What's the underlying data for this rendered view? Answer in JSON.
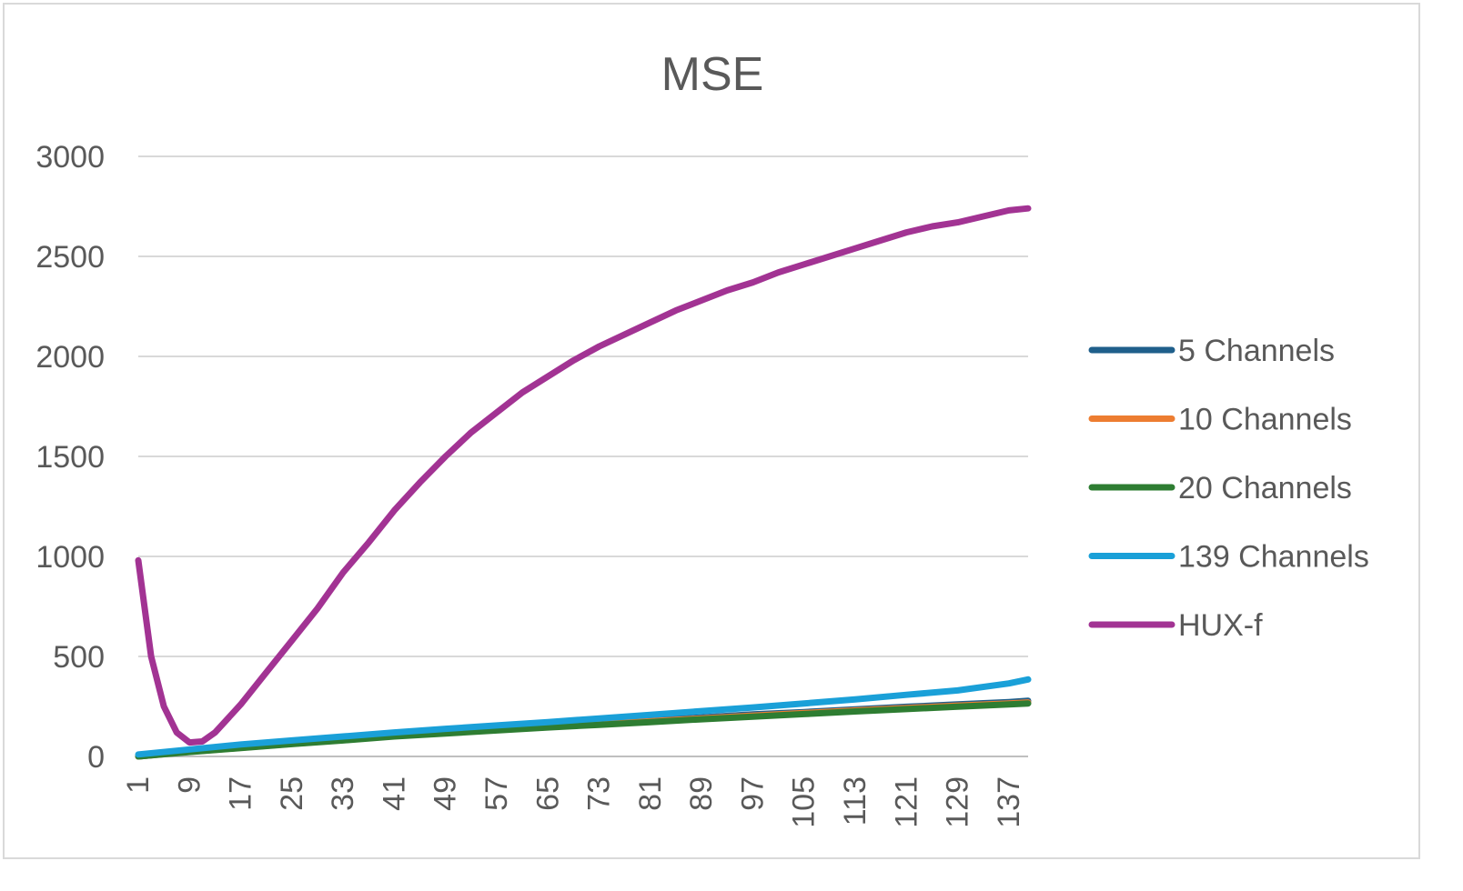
{
  "chart_data": {
    "type": "line",
    "title": "MSE",
    "xlabel": "",
    "ylabel": "",
    "x_range": [
      1,
      140
    ],
    "ylim": [
      0,
      3000
    ],
    "y_ticks": [
      0,
      500,
      1000,
      1500,
      2000,
      2500,
      3000
    ],
    "x_tick_labels": [
      1,
      9,
      17,
      25,
      33,
      41,
      49,
      57,
      65,
      73,
      81,
      89,
      97,
      105,
      113,
      121,
      129,
      137
    ],
    "grid": true,
    "legend_position": "right",
    "series": [
      {
        "name": "5 Channels",
        "color": "#1f5f8b",
        "points": [
          [
            1,
            0
          ],
          [
            9,
            25
          ],
          [
            17,
            45
          ],
          [
            25,
            65
          ],
          [
            33,
            85
          ],
          [
            41,
            105
          ],
          [
            49,
            120
          ],
          [
            57,
            135
          ],
          [
            65,
            150
          ],
          [
            73,
            165
          ],
          [
            81,
            180
          ],
          [
            89,
            195
          ],
          [
            97,
            210
          ],
          [
            105,
            222
          ],
          [
            113,
            235
          ],
          [
            121,
            248
          ],
          [
            129,
            260
          ],
          [
            137,
            272
          ],
          [
            140,
            278
          ]
        ]
      },
      {
        "name": "10 Channels",
        "color": "#ed7d31",
        "points": [
          [
            1,
            0
          ],
          [
            9,
            23
          ],
          [
            17,
            43
          ],
          [
            25,
            63
          ],
          [
            33,
            82
          ],
          [
            41,
            102
          ],
          [
            49,
            117
          ],
          [
            57,
            132
          ],
          [
            65,
            147
          ],
          [
            73,
            161
          ],
          [
            81,
            176
          ],
          [
            89,
            190
          ],
          [
            97,
            204
          ],
          [
            105,
            217
          ],
          [
            113,
            230
          ],
          [
            121,
            242
          ],
          [
            129,
            254
          ],
          [
            137,
            265
          ],
          [
            140,
            270
          ]
        ]
      },
      {
        "name": "20 Channels",
        "color": "#2e7d32",
        "points": [
          [
            1,
            0
          ],
          [
            9,
            22
          ],
          [
            17,
            42
          ],
          [
            25,
            62
          ],
          [
            33,
            80
          ],
          [
            41,
            100
          ],
          [
            49,
            115
          ],
          [
            57,
            130
          ],
          [
            65,
            145
          ],
          [
            73,
            158
          ],
          [
            81,
            172
          ],
          [
            89,
            186
          ],
          [
            97,
            199
          ],
          [
            105,
            212
          ],
          [
            113,
            225
          ],
          [
            121,
            237
          ],
          [
            129,
            249
          ],
          [
            137,
            260
          ],
          [
            140,
            265
          ]
        ]
      },
      {
        "name": "139 Channels",
        "color": "#1aa0d8",
        "points": [
          [
            1,
            10
          ],
          [
            9,
            35
          ],
          [
            17,
            60
          ],
          [
            25,
            80
          ],
          [
            33,
            100
          ],
          [
            41,
            120
          ],
          [
            49,
            138
          ],
          [
            57,
            155
          ],
          [
            65,
            172
          ],
          [
            73,
            190
          ],
          [
            81,
            208
          ],
          [
            89,
            227
          ],
          [
            97,
            245
          ],
          [
            105,
            265
          ],
          [
            113,
            285
          ],
          [
            121,
            308
          ],
          [
            129,
            330
          ],
          [
            137,
            365
          ],
          [
            140,
            385
          ]
        ]
      },
      {
        "name": "HUX-f",
        "color": "#a23393",
        "points": [
          [
            1,
            980
          ],
          [
            3,
            500
          ],
          [
            5,
            250
          ],
          [
            7,
            120
          ],
          [
            9,
            70
          ],
          [
            11,
            75
          ],
          [
            13,
            120
          ],
          [
            15,
            190
          ],
          [
            17,
            260
          ],
          [
            21,
            420
          ],
          [
            25,
            580
          ],
          [
            29,
            740
          ],
          [
            33,
            920
          ],
          [
            37,
            1070
          ],
          [
            41,
            1230
          ],
          [
            45,
            1370
          ],
          [
            49,
            1500
          ],
          [
            53,
            1620
          ],
          [
            57,
            1720
          ],
          [
            61,
            1820
          ],
          [
            65,
            1900
          ],
          [
            69,
            1980
          ],
          [
            73,
            2050
          ],
          [
            77,
            2110
          ],
          [
            81,
            2170
          ],
          [
            85,
            2230
          ],
          [
            89,
            2280
          ],
          [
            93,
            2330
          ],
          [
            97,
            2370
          ],
          [
            101,
            2420
          ],
          [
            105,
            2460
          ],
          [
            109,
            2500
          ],
          [
            113,
            2540
          ],
          [
            117,
            2580
          ],
          [
            121,
            2620
          ],
          [
            125,
            2650
          ],
          [
            129,
            2670
          ],
          [
            133,
            2700
          ],
          [
            137,
            2730
          ],
          [
            140,
            2740
          ]
        ]
      }
    ]
  }
}
